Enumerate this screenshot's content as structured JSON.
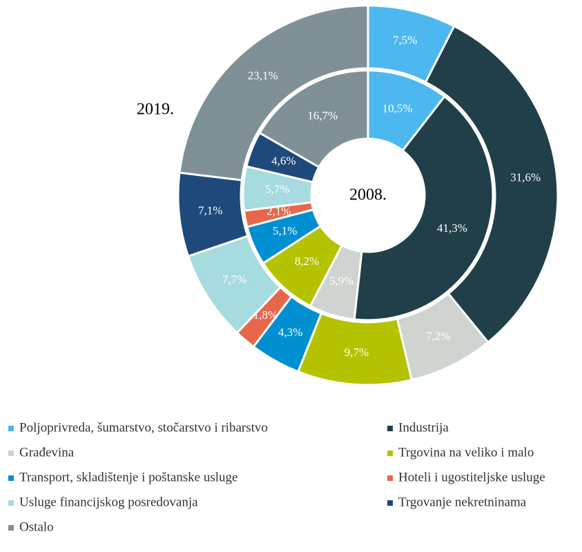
{
  "chart_data": {
    "type": "nested-donut",
    "categories": [
      "Poljoprivreda, šumarstvo, stočarstvo i ribarstvo",
      "Industrija",
      "Građevina",
      "Trgovina na veliko i malo",
      "Transport, skladištenje i poštanske usluge",
      "Hoteli i ugostiteljske usluge",
      "Usluge financijskog posredovanja",
      "Trgovanje nekretninama",
      "Ostalo"
    ],
    "colors": [
      "#4db8f0",
      "#213f48",
      "#d0d4d0",
      "#b5c200",
      "#0090d2",
      "#e8674a",
      "#a6dbe0",
      "#1d4a7a",
      "#7f9097"
    ],
    "series": [
      {
        "name": "2019.",
        "values": [
          7.5,
          31.6,
          7.2,
          9.7,
          4.3,
          1.8,
          7.7,
          7.1,
          23.1
        ],
        "value_labels": [
          "7,5%",
          "31,6%",
          "7,2%",
          "9,7%",
          "4,3%",
          "1,8%",
          "7,7%",
          "7,1%",
          "23,1%"
        ]
      },
      {
        "name": "2008.",
        "values": [
          10.5,
          41.3,
          5.9,
          8.2,
          5.1,
          2.1,
          5.7,
          4.6,
          16.7
        ],
        "value_labels": [
          "10,5%",
          "41,3%",
          "5,9%",
          "8,2%",
          "5,1%",
          "2,1%",
          "5,7%",
          "4,6%",
          "16,7%"
        ]
      }
    ]
  }
}
